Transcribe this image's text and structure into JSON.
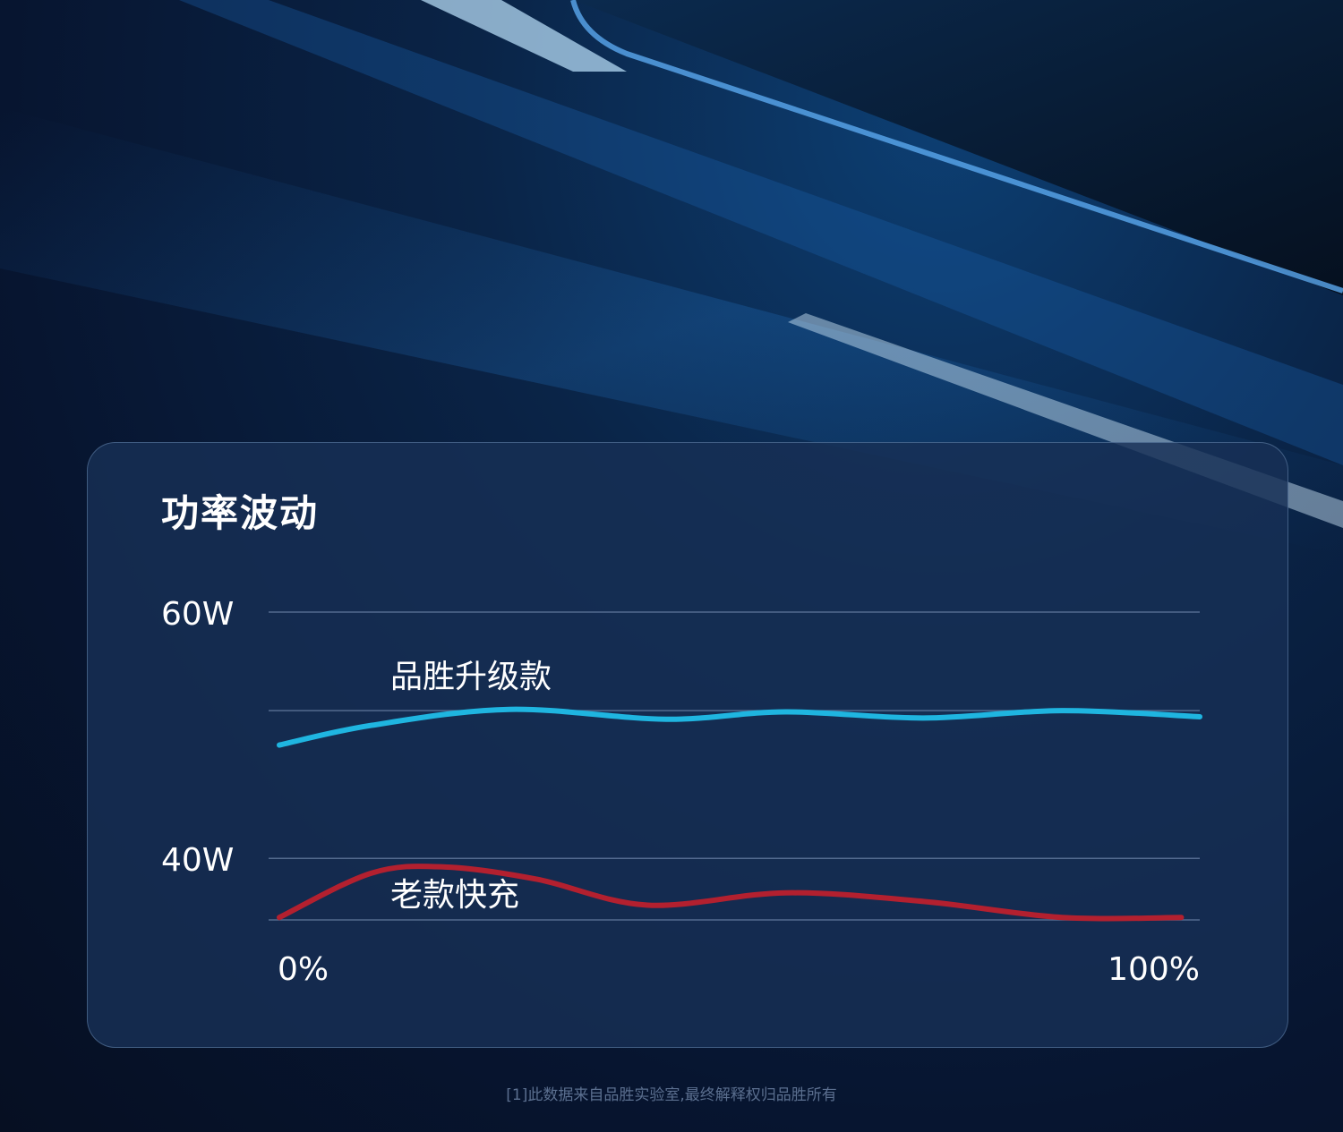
{
  "chart_data": {
    "type": "line",
    "title": "功率波动",
    "y_ticks": [
      "60W",
      "40W"
    ],
    "x_ticks": [
      "0%",
      "100%"
    ],
    "xlim": [
      0,
      100
    ],
    "ylim": [
      35,
      60
    ],
    "grid": true,
    "series": [
      {
        "name": "品胜升级款",
        "color": "#1fb5e0",
        "x": [
          0,
          10,
          25,
          42,
          55,
          70,
          85,
          100
        ],
        "y": [
          49.2,
          50.8,
          52.1,
          51.3,
          51.9,
          51.4,
          52.0,
          51.5
        ]
      },
      {
        "name": "老款快充",
        "color": "#b3202f",
        "x": [
          0,
          10,
          18,
          28,
          40,
          55,
          70,
          85,
          98
        ],
        "y": [
          35.2,
          38.8,
          39.3,
          38.3,
          36.2,
          37.2,
          36.5,
          35.2,
          35.2
        ]
      }
    ]
  },
  "footnote": "[1]此数据来自品胜实验室,最终解释权归品胜所有"
}
